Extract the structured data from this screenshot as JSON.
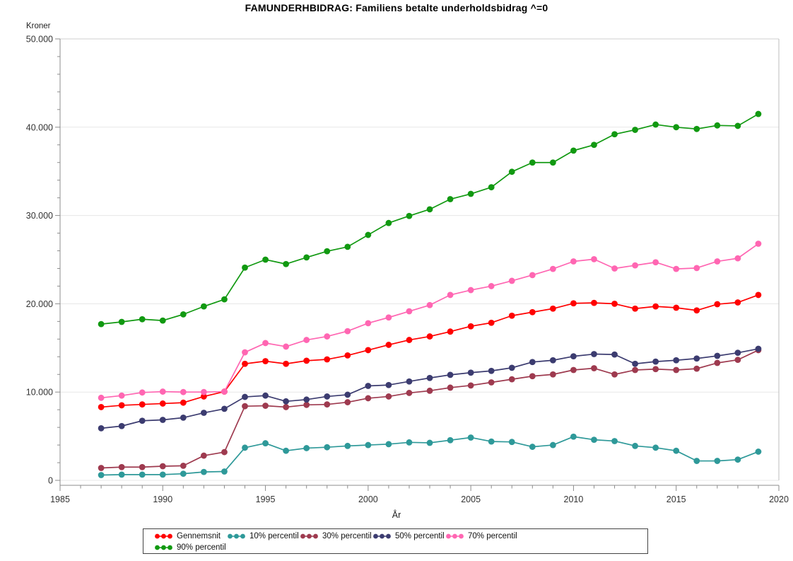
{
  "title": "FAMUNDERHBIDRAG: Familiens betalte underholdsbidrag ^=0",
  "chart_data": {
    "type": "line",
    "title": "FAMUNDERHBIDRAG: Familiens betalte underholdsbidrag ^=0",
    "xlabel": "År",
    "ylabel": "Kroner",
    "xlim": [
      1985,
      2020
    ],
    "ylim": [
      0,
      50000
    ],
    "x_major_ticks": [
      1985,
      1990,
      1995,
      2000,
      2005,
      2010,
      2015,
      2020
    ],
    "x_minor_step": 1,
    "y_major_ticks": [
      0,
      10000,
      20000,
      30000,
      40000,
      50000
    ],
    "y_tick_labels": [
      "0",
      "10.000",
      "20.000",
      "30.000",
      "40.000",
      "50.000"
    ],
    "y_minor_step": 2000,
    "grid": "horizontal-major",
    "legend_position": "bottom-center-box",
    "x": [
      1987,
      1988,
      1989,
      1990,
      1991,
      1992,
      1993,
      1994,
      1995,
      1996,
      1997,
      1998,
      1999,
      2000,
      2001,
      2002,
      2003,
      2004,
      2005,
      2006,
      2007,
      2008,
      2009,
      2010,
      2011,
      2012,
      2013,
      2014,
      2015,
      2016,
      2017,
      2018,
      2019
    ],
    "series": [
      {
        "name": "Gennemsnit",
        "color": "#FF0000",
        "values": [
          8300,
          8500,
          8600,
          8700,
          8800,
          9500,
          10050,
          13200,
          13500,
          13200,
          13550,
          13700,
          14150,
          14750,
          15350,
          15900,
          16300,
          16850,
          17450,
          17850,
          18650,
          19050,
          19450,
          20050,
          20100,
          20000,
          19450,
          19700,
          19550,
          19250,
          19950,
          20150,
          21000
        ]
      },
      {
        "name": "10% percentil",
        "color": "#2E9999",
        "values": [
          600,
          650,
          650,
          650,
          750,
          950,
          1000,
          3700,
          4200,
          3350,
          3650,
          3750,
          3900,
          4000,
          4100,
          4300,
          4250,
          4550,
          4850,
          4400,
          4350,
          3800,
          4000,
          4950,
          4600,
          4450,
          3900,
          3700,
          3350,
          2200,
          2200,
          2350,
          3250
        ]
      },
      {
        "name": "30% percentil",
        "color": "#9E3A4F",
        "values": [
          1400,
          1500,
          1500,
          1600,
          1650,
          2800,
          3200,
          8400,
          8450,
          8300,
          8550,
          8600,
          8850,
          9300,
          9500,
          9900,
          10150,
          10500,
          10750,
          11100,
          11450,
          11800,
          12000,
          12500,
          12700,
          12000,
          12500,
          12600,
          12500,
          12650,
          13300,
          13650,
          14750
        ]
      },
      {
        "name": "50% percentil",
        "color": "#3C3C70",
        "values": [
          5900,
          6150,
          6750,
          6850,
          7100,
          7650,
          8100,
          9450,
          9600,
          8950,
          9150,
          9500,
          9700,
          10700,
          10800,
          11200,
          11600,
          11950,
          12200,
          12400,
          12750,
          13400,
          13600,
          14050,
          14300,
          14250,
          13200,
          13450,
          13600,
          13800,
          14100,
          14450,
          14900
        ]
      },
      {
        "name": "70% percentil",
        "color": "#FF66B2",
        "values": [
          9350,
          9600,
          9950,
          10050,
          10000,
          10000,
          10050,
          14500,
          15550,
          15150,
          15900,
          16300,
          16900,
          17800,
          18450,
          19150,
          19850,
          21000,
          21550,
          22000,
          22600,
          23250,
          23950,
          24800,
          25050,
          24000,
          24350,
          24700,
          23950,
          24050,
          24800,
          25150,
          26800
        ]
      },
      {
        "name": "90% percentil",
        "color": "#119911",
        "values": [
          17700,
          17950,
          18250,
          18100,
          18800,
          19700,
          20500,
          24100,
          25000,
          24500,
          25250,
          25950,
          26450,
          27800,
          29150,
          29950,
          30700,
          31850,
          32450,
          33200,
          34950,
          36000,
          36000,
          37350,
          38000,
          39200,
          39700,
          40300,
          40000,
          39800,
          40200,
          40150,
          41500
        ]
      }
    ]
  }
}
